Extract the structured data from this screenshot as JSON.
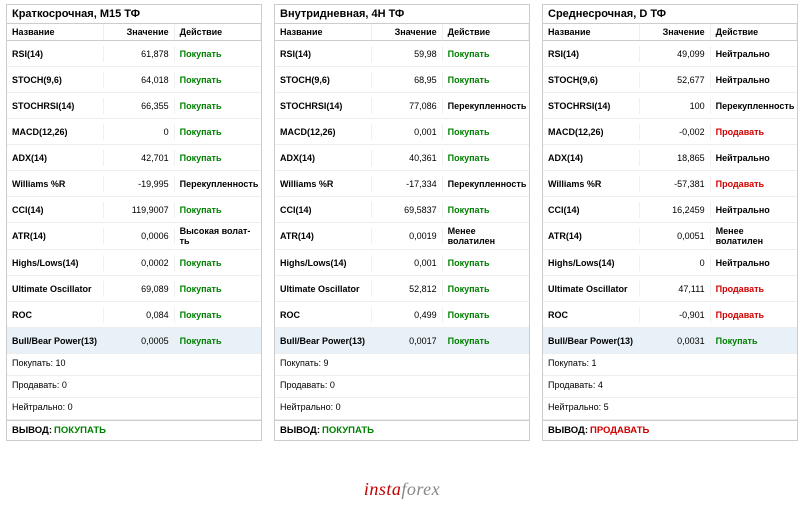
{
  "panels": [
    {
      "title": "Краткосрочная, М15 ТФ",
      "headers": {
        "name": "Название",
        "value": "Значение",
        "action": "Действие"
      },
      "rows": [
        {
          "name": "RSI(14)",
          "value": "61,878",
          "action": "Покупать",
          "action_type": "buy"
        },
        {
          "name": "STOCH(9,6)",
          "value": "64,018",
          "action": "Покупать",
          "action_type": "buy"
        },
        {
          "name": "STOCHRSI(14)",
          "value": "66,355",
          "action": "Покупать",
          "action_type": "buy"
        },
        {
          "name": "MACD(12,26)",
          "value": "0",
          "action": "Покупать",
          "action_type": "buy"
        },
        {
          "name": "ADX(14)",
          "value": "42,701",
          "action": "Покупать",
          "action_type": "buy"
        },
        {
          "name": "Williams %R",
          "value": "-19,995",
          "action": "Перекупленность",
          "action_type": "neutral"
        },
        {
          "name": "CCI(14)",
          "value": "119,9007",
          "action": "Покупать",
          "action_type": "buy"
        },
        {
          "name": "ATR(14)",
          "value": "0,0006",
          "action": "Высокая волат-ть",
          "action_type": "neutral"
        },
        {
          "name": "Highs/Lows(14)",
          "value": "0,0002",
          "action": "Покупать",
          "action_type": "buy"
        },
        {
          "name": "Ultimate Oscillator",
          "value": "69,089",
          "action": "Покупать",
          "action_type": "buy"
        },
        {
          "name": "ROC",
          "value": "0,084",
          "action": "Покупать",
          "action_type": "buy"
        },
        {
          "name": "Bull/Bear Power(13)",
          "value": "0,0005",
          "action": "Покупать",
          "action_type": "buy",
          "highlight": true
        }
      ],
      "summary": [
        "Покупать: 10",
        "Продавать: 0",
        "Нейтрально: 0"
      ],
      "conclusion": {
        "label": "ВЫВОД:",
        "value": "ПОКУПАТЬ",
        "type": "buy"
      }
    },
    {
      "title": "Внутридневная, 4Н ТФ",
      "headers": {
        "name": "Название",
        "value": "Значение",
        "action": "Действие"
      },
      "rows": [
        {
          "name": "RSI(14)",
          "value": "59,98",
          "action": "Покупать",
          "action_type": "buy"
        },
        {
          "name": "STOCH(9,6)",
          "value": "68,95",
          "action": "Покупать",
          "action_type": "buy"
        },
        {
          "name": "STOCHRSI(14)",
          "value": "77,086",
          "action": "Перекупленность",
          "action_type": "neutral"
        },
        {
          "name": "MACD(12,26)",
          "value": "0,001",
          "action": "Покупать",
          "action_type": "buy"
        },
        {
          "name": "ADX(14)",
          "value": "40,361",
          "action": "Покупать",
          "action_type": "buy"
        },
        {
          "name": "Williams %R",
          "value": "-17,334",
          "action": "Перекупленность",
          "action_type": "neutral"
        },
        {
          "name": "CCI(14)",
          "value": "69,5837",
          "action": "Покупать",
          "action_type": "buy"
        },
        {
          "name": "ATR(14)",
          "value": "0,0019",
          "action": "Менее волатилен",
          "action_type": "neutral"
        },
        {
          "name": "Highs/Lows(14)",
          "value": "0,001",
          "action": "Покупать",
          "action_type": "buy"
        },
        {
          "name": "Ultimate Oscillator",
          "value": "52,812",
          "action": "Покупать",
          "action_type": "buy"
        },
        {
          "name": "ROC",
          "value": "0,499",
          "action": "Покупать",
          "action_type": "buy"
        },
        {
          "name": "Bull/Bear Power(13)",
          "value": "0,0017",
          "action": "Покупать",
          "action_type": "buy",
          "highlight": true
        }
      ],
      "summary": [
        "Покупать: 9",
        "Продавать: 0",
        "Нейтрально: 0"
      ],
      "conclusion": {
        "label": "ВЫВОД:",
        "value": "ПОКУПАТЬ",
        "type": "buy"
      }
    },
    {
      "title": "Среднесрочная, D ТФ",
      "headers": {
        "name": "Название",
        "value": "Значение",
        "action": "Действие"
      },
      "rows": [
        {
          "name": "RSI(14)",
          "value": "49,099",
          "action": "Нейтрально",
          "action_type": "neutral"
        },
        {
          "name": "STOCH(9,6)",
          "value": "52,677",
          "action": "Нейтрально",
          "action_type": "neutral"
        },
        {
          "name": "STOCHRSI(14)",
          "value": "100",
          "action": "Перекупленность",
          "action_type": "neutral"
        },
        {
          "name": "MACD(12,26)",
          "value": "-0,002",
          "action": "Продавать",
          "action_type": "sell"
        },
        {
          "name": "ADX(14)",
          "value": "18,865",
          "action": "Нейтрально",
          "action_type": "neutral"
        },
        {
          "name": "Williams %R",
          "value": "-57,381",
          "action": "Продавать",
          "action_type": "sell"
        },
        {
          "name": "CCI(14)",
          "value": "16,2459",
          "action": "Нейтрально",
          "action_type": "neutral"
        },
        {
          "name": "ATR(14)",
          "value": "0,0051",
          "action": "Менее волатилен",
          "action_type": "neutral"
        },
        {
          "name": "Highs/Lows(14)",
          "value": "0",
          "action": "Нейтрально",
          "action_type": "neutral"
        },
        {
          "name": "Ultimate Oscillator",
          "value": "47,111",
          "action": "Продавать",
          "action_type": "sell"
        },
        {
          "name": "ROC",
          "value": "-0,901",
          "action": "Продавать",
          "action_type": "sell"
        },
        {
          "name": "Bull/Bear Power(13)",
          "value": "0,0031",
          "action": "Покупать",
          "action_type": "buy",
          "highlight": true
        }
      ],
      "summary": [
        "Покупать: 1",
        "Продавать: 4",
        "Нейтрально: 5"
      ],
      "conclusion": {
        "label": "ВЫВОД:",
        "value": "ПРОДАВАТЬ",
        "type": "sell"
      }
    }
  ],
  "logo": {
    "part1": "insta",
    "part2": "forex"
  },
  "colors": {
    "buy": "#008000",
    "sell": "#d00000",
    "neutral": "#000000",
    "border": "#cccccc",
    "highlight": "#e8f1f7",
    "background": "#ffffff",
    "logo_red": "#c00000",
    "logo_gray": "#888888"
  }
}
